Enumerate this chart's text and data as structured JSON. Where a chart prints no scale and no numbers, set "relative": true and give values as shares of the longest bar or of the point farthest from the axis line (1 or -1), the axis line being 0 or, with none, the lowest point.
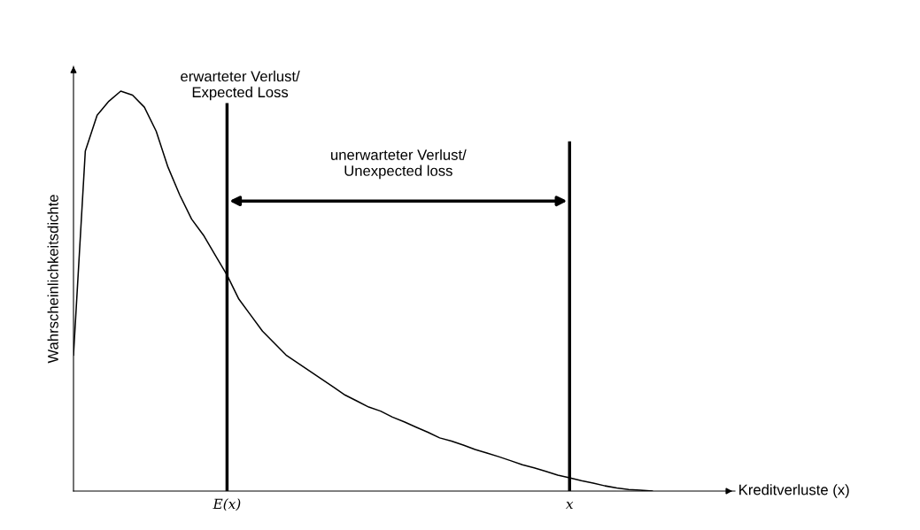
{
  "chart_data": {
    "type": "line",
    "relative": true,
    "xlabel": "Kreditverluste (x)",
    "ylabel": "Wahrscheinlichkeitsdichte",
    "categories": [
      null,
      null,
      null,
      null,
      null,
      null,
      null,
      null,
      null,
      null,
      null,
      null,
      null,
      "E(x)",
      null,
      null,
      null,
      null,
      null,
      null,
      null,
      null,
      null,
      null,
      null,
      null,
      null,
      null,
      null,
      null,
      null,
      null,
      null,
      null,
      null,
      null,
      null,
      null,
      null,
      null,
      null,
      null,
      "x",
      null,
      null,
      null,
      null,
      null,
      null,
      null,
      null,
      null,
      null,
      null,
      null,
      null,
      null
    ],
    "series": [
      {
        "color": "#000000",
        "values": [
          0.34,
          0.85,
          0.94,
          0.975,
          1.0,
          0.99,
          0.96,
          0.9,
          0.81,
          0.74,
          0.68,
          0.64,
          0.59,
          0.54,
          0.48,
          0.44,
          0.4,
          0.37,
          0.34,
          0.32,
          0.3,
          0.28,
          0.26,
          0.24,
          0.225,
          0.21,
          0.2,
          0.185,
          0.173,
          0.16,
          0.147,
          0.133,
          0.125,
          0.115,
          0.104,
          0.095,
          0.086,
          0.076,
          0.066,
          0.058,
          0.049,
          0.04,
          0.033,
          0.026,
          0.02,
          0.013,
          0.008,
          0.004,
          0.002,
          0,
          null,
          null,
          null,
          null,
          null,
          null,
          null
        ]
      }
    ],
    "ref_lines": [
      {
        "axis": "x",
        "value": "E(x)",
        "color": "#000000"
      },
      {
        "axis": "x",
        "value": "x",
        "color": "#000000"
      }
    ],
    "annotations": [
      "erwarteter Verlust/\nExpected Loss",
      "unerwarteter Verlust/\nUnexpected loss"
    ],
    "grid": false,
    "legend": false,
    "marker": "none",
    "line_style": "solid"
  }
}
